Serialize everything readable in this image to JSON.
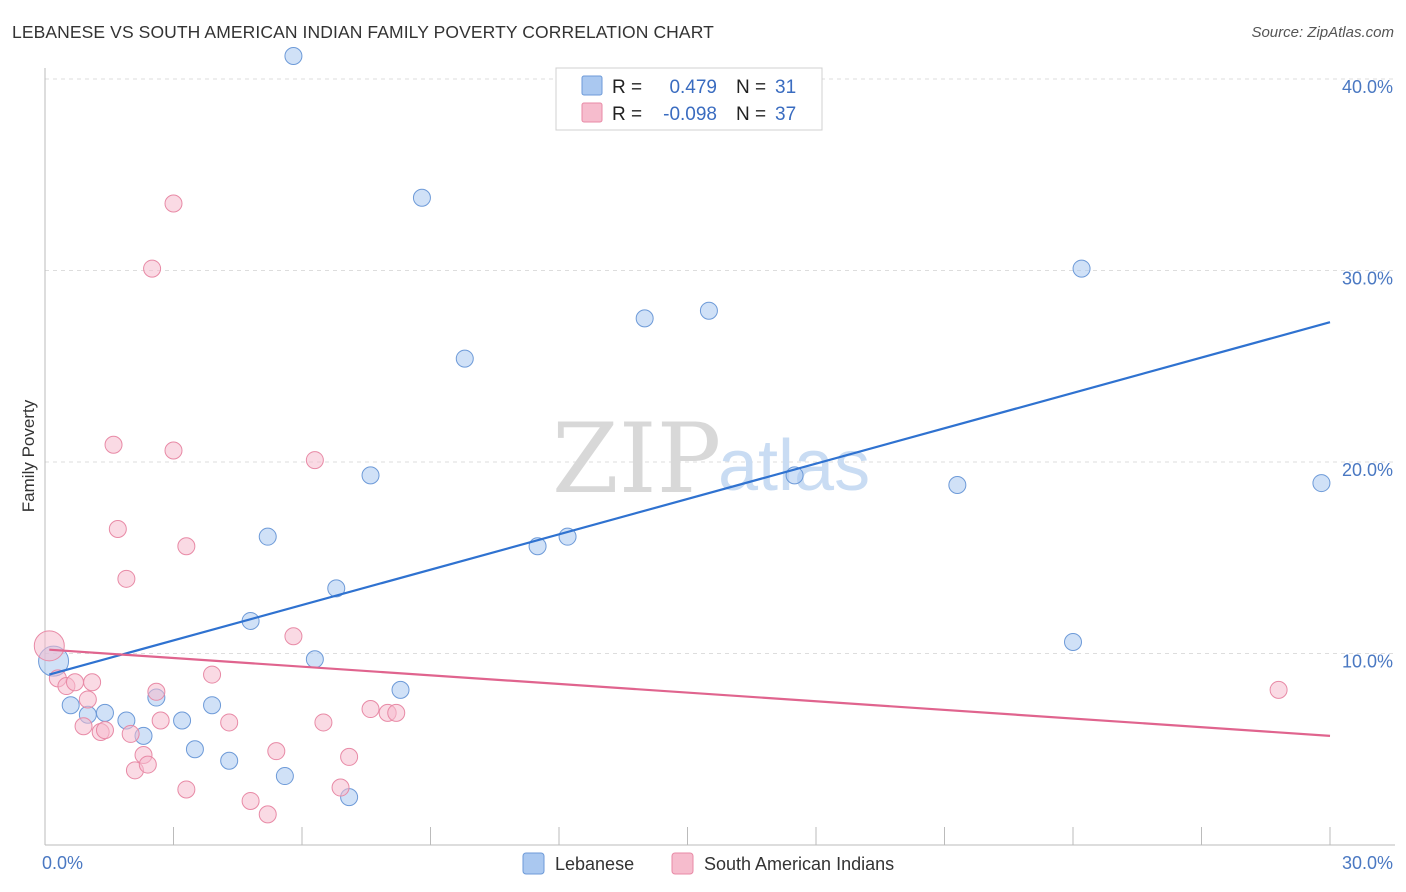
{
  "header": {
    "title": "LEBANESE VS SOUTH AMERICAN INDIAN FAMILY POVERTY CORRELATION CHART",
    "source": "Source: ZipAtlas.com"
  },
  "watermark": {
    "zip": "ZIP",
    "atlas": "atlas"
  },
  "legend_box": {
    "rows": [
      {
        "r_label": "R =",
        "r_value": "0.479",
        "n_label": "N =",
        "n_value": "31",
        "color": "#aac8f0"
      },
      {
        "r_label": "R =",
        "r_value": "-0.098",
        "n_label": "N =",
        "n_value": "37",
        "color": "#f6bccd"
      }
    ]
  },
  "chart_data": {
    "type": "scatter",
    "title": "LEBANESE VS SOUTH AMERICAN INDIAN FAMILY POVERTY CORRELATION CHART",
    "xlabel": "",
    "ylabel": "Family Poverty",
    "xlim": [
      0,
      30
    ],
    "ylim": [
      0,
      40
    ],
    "x_tick_labels": [
      "0.0%",
      "30.0%"
    ],
    "y_ticks": [
      10,
      20,
      30,
      40
    ],
    "y_tick_labels": [
      "10.0%",
      "20.0%",
      "30.0%",
      "40.0%"
    ],
    "grid": "horizontal dashed",
    "legend_position": "bottom-center",
    "series": [
      {
        "name": "Lebanese",
        "color": "#aac8f0",
        "stroke": "#6d9ad8",
        "trend_color": "#2f72d0",
        "trend": {
          "x": [
            0.1,
            30
          ],
          "y": [
            8.9,
            27.3
          ]
        },
        "points": [
          [
            0.2,
            9.6
          ],
          [
            0.6,
            7.3
          ],
          [
            1.0,
            6.8
          ],
          [
            1.4,
            6.9
          ],
          [
            1.9,
            6.5
          ],
          [
            2.3,
            5.7
          ],
          [
            2.6,
            7.7
          ],
          [
            3.2,
            6.5
          ],
          [
            3.5,
            5.0
          ],
          [
            3.9,
            7.3
          ],
          [
            4.3,
            4.4
          ],
          [
            4.8,
            11.7
          ],
          [
            5.2,
            16.1
          ],
          [
            5.6,
            3.6
          ],
          [
            5.8,
            41.2
          ],
          [
            6.3,
            9.7
          ],
          [
            6.8,
            13.4
          ],
          [
            7.1,
            2.5
          ],
          [
            7.6,
            19.3
          ],
          [
            8.3,
            8.1
          ],
          [
            8.8,
            33.8
          ],
          [
            9.8,
            25.4
          ],
          [
            11.5,
            15.6
          ],
          [
            12.2,
            16.1
          ],
          [
            14.0,
            27.5
          ],
          [
            15.5,
            27.9
          ],
          [
            17.5,
            19.3
          ],
          [
            21.3,
            18.8
          ],
          [
            24.0,
            10.6
          ],
          [
            24.2,
            30.1
          ],
          [
            29.8,
            18.9
          ]
        ]
      },
      {
        "name": "South American Indians",
        "color": "#f6bccd",
        "stroke": "#e88aa6",
        "trend_color": "#e0648e",
        "trend": {
          "x": [
            0.1,
            30
          ],
          "y": [
            10.2,
            5.7
          ]
        },
        "points": [
          [
            0.1,
            10.4
          ],
          [
            0.3,
            8.7
          ],
          [
            0.5,
            8.3
          ],
          [
            0.7,
            8.5
          ],
          [
            0.9,
            6.2
          ],
          [
            1.0,
            7.6
          ],
          [
            1.1,
            8.5
          ],
          [
            1.3,
            5.9
          ],
          [
            1.4,
            6.0
          ],
          [
            1.6,
            20.9
          ],
          [
            1.7,
            16.5
          ],
          [
            1.9,
            13.9
          ],
          [
            2.0,
            5.8
          ],
          [
            2.1,
            3.9
          ],
          [
            2.3,
            4.7
          ],
          [
            2.4,
            4.2
          ],
          [
            2.5,
            30.1
          ],
          [
            2.6,
            8.0
          ],
          [
            2.7,
            6.5
          ],
          [
            3.0,
            33.5
          ],
          [
            3.0,
            20.6
          ],
          [
            3.3,
            15.6
          ],
          [
            3.3,
            2.9
          ],
          [
            3.9,
            8.9
          ],
          [
            4.3,
            6.4
          ],
          [
            4.8,
            2.3
          ],
          [
            5.2,
            1.6
          ],
          [
            5.4,
            4.9
          ],
          [
            5.8,
            10.9
          ],
          [
            6.3,
            20.1
          ],
          [
            6.5,
            6.4
          ],
          [
            6.9,
            3.0
          ],
          [
            7.1,
            4.6
          ],
          [
            7.6,
            7.1
          ],
          [
            8.0,
            6.9
          ],
          [
            8.2,
            6.9
          ],
          [
            28.8,
            8.1
          ]
        ]
      }
    ]
  }
}
